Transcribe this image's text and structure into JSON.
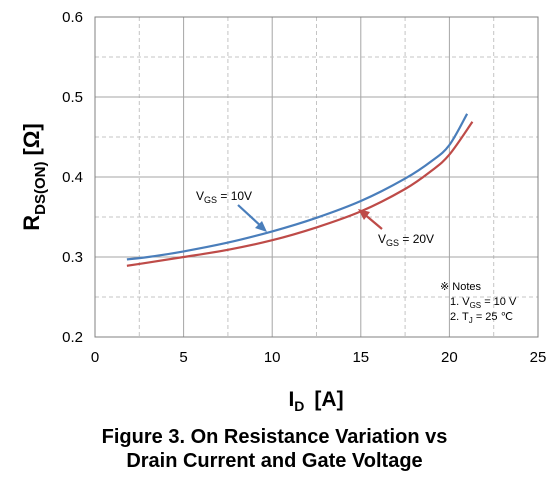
{
  "chart_data": {
    "type": "line",
    "xlim": [
      0,
      25
    ],
    "ylim": [
      0.2,
      0.6
    ],
    "x_ticks": [
      "0",
      "5",
      "10",
      "15",
      "20",
      "25"
    ],
    "y_ticks": [
      "0.2",
      "0.3",
      "0.4",
      "0.5",
      "0.6"
    ],
    "grid": true,
    "xlabel": {
      "main": "I",
      "sub": "D",
      "unit": "[A]"
    },
    "ylabel": {
      "main": "R",
      "sub": "DS(ON)",
      "unit": "[Ω]"
    },
    "series": [
      {
        "label_main": "V",
        "label_sub": "GS",
        "label_value": " = 10V",
        "color": "#4a7ebb",
        "x": [
          1.8,
          3,
          5,
          7.5,
          10,
          12.5,
          15,
          17.5,
          19,
          20,
          21
        ],
        "y": [
          0.297,
          0.3,
          0.307,
          0.318,
          0.332,
          0.349,
          0.37,
          0.398,
          0.42,
          0.44,
          0.479
        ]
      },
      {
        "label_main": "V",
        "label_sub": "GS",
        "label_value": " = 20V",
        "color": "#be4b48",
        "x": [
          1.8,
          3,
          5,
          7.5,
          10,
          12.5,
          15,
          17.5,
          19,
          20,
          21.3
        ],
        "y": [
          0.289,
          0.293,
          0.3,
          0.309,
          0.321,
          0.337,
          0.357,
          0.385,
          0.408,
          0.428,
          0.469
        ]
      }
    ],
    "notes": {
      "title": "※ Notes",
      "line1_prefix": "1. V",
      "line1_sub": "GS",
      "line1_value": " = 10 V",
      "line2_prefix": "2. T",
      "line2_sub": "J",
      "line2_value": " = 25 ℃"
    }
  },
  "caption": {
    "line1": "Figure 3. On Resistance Variation vs",
    "line2": "Drain Current and Gate Voltage"
  }
}
